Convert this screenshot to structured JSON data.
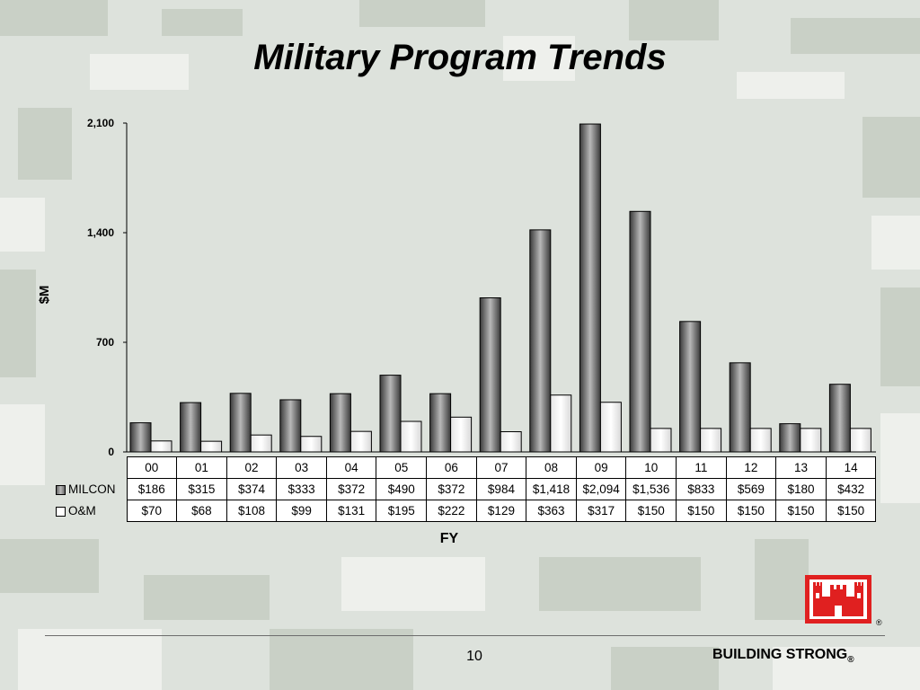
{
  "slide": {
    "title": "Military Program Trends",
    "page_number": "10",
    "brand": "BUILDING STRONG",
    "brand_mark": "®",
    "logo_mark": "®"
  },
  "colors": {
    "milcon_fill": "#888888",
    "om_fill": "#ffffff",
    "logo_red": "#e02020",
    "background": "#dfe3df"
  },
  "chart_data": {
    "type": "bar",
    "ylabel": "$M",
    "xlabel": "FY",
    "ylim": [
      0,
      2100
    ],
    "yticks": [
      "0",
      "700",
      "1,400",
      "2,100"
    ],
    "ytick_values": [
      0,
      700,
      1400,
      2100
    ],
    "grid": false,
    "legend": "data-table",
    "categories": [
      "00",
      "01",
      "02",
      "03",
      "04",
      "05",
      "06",
      "07",
      "08",
      "09",
      "10",
      "11",
      "12",
      "13",
      "14"
    ],
    "series": [
      {
        "name": "MILCON",
        "values": [
          186,
          315,
          374,
          333,
          372,
          490,
          372,
          984,
          1418,
          2094,
          1536,
          833,
          569,
          180,
          432
        ],
        "labels": [
          "$186",
          "$315",
          "$374",
          "$333",
          "$372",
          "$490",
          "$372",
          "$984",
          "$1,418",
          "$2,094",
          "$1,536",
          "$833",
          "$569",
          "$180",
          "$432"
        ]
      },
      {
        "name": "O&M",
        "values": [
          70,
          68,
          108,
          99,
          131,
          195,
          222,
          129,
          363,
          317,
          150,
          150,
          150,
          150,
          150
        ],
        "labels": [
          "$70",
          "$68",
          "$108",
          "$99",
          "$131",
          "$195",
          "$222",
          "$129",
          "$363",
          "$317",
          "$150",
          "$150",
          "$150",
          "$150",
          "$150"
        ]
      }
    ]
  }
}
